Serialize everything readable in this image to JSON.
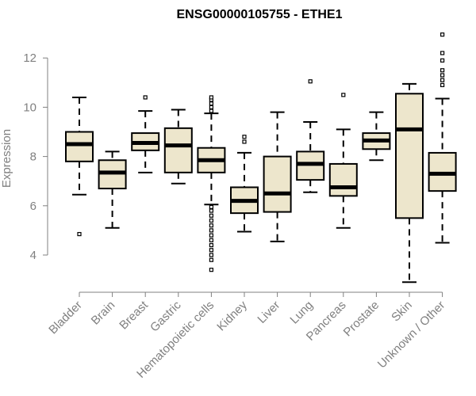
{
  "chart_data": {
    "type": "box",
    "title": "ENSG00000105755 - ETHE1",
    "ylabel": "Expression",
    "xlabel": "",
    "ylim": [
      3.0,
      13.0
    ],
    "yticks": [
      4,
      6,
      8,
      10,
      12
    ],
    "grid": false,
    "legend": "none",
    "box_fill": "#ede6cc",
    "box_stroke": "#000000",
    "categories": [
      "Bladder",
      "Brain",
      "Breast",
      "Gastric",
      "Hematopoietic cells",
      "Kidney",
      "Liver",
      "Lung",
      "Pancreas",
      "Prostate",
      "Skin",
      "Unknown / Other"
    ],
    "boxes": [
      {
        "whisker_low": 6.45,
        "q1": 7.8,
        "median": 8.5,
        "q3": 9.0,
        "whisker_high": 10.4,
        "outliers": [
          4.85
        ]
      },
      {
        "whisker_low": 5.1,
        "q1": 6.7,
        "median": 7.35,
        "q3": 7.85,
        "whisker_high": 8.2,
        "outliers": []
      },
      {
        "whisker_low": 7.35,
        "q1": 8.25,
        "median": 8.55,
        "q3": 8.95,
        "whisker_high": 9.85,
        "outliers": [
          10.4
        ]
      },
      {
        "whisker_low": 6.9,
        "q1": 7.35,
        "median": 8.45,
        "q3": 9.15,
        "whisker_high": 9.9,
        "outliers": []
      },
      {
        "whisker_low": 6.05,
        "q1": 7.35,
        "median": 7.85,
        "q3": 8.35,
        "whisker_high": 9.75,
        "outliers": [
          3.4,
          3.8,
          4.0,
          4.2,
          4.4,
          4.6,
          4.8,
          5.0,
          5.2,
          5.4,
          5.6,
          5.8,
          5.95,
          9.85,
          10.0,
          10.15,
          10.3,
          10.4
        ]
      },
      {
        "whisker_low": 4.95,
        "q1": 5.7,
        "median": 6.2,
        "q3": 6.75,
        "whisker_high": 8.15,
        "outliers": [
          8.6,
          8.8
        ]
      },
      {
        "whisker_low": 4.55,
        "q1": 5.75,
        "median": 6.5,
        "q3": 8.0,
        "whisker_high": 9.8,
        "outliers": []
      },
      {
        "whisker_low": 6.55,
        "q1": 7.05,
        "median": 7.7,
        "q3": 8.2,
        "whisker_high": 9.4,
        "outliers": [
          11.05
        ]
      },
      {
        "whisker_low": 5.1,
        "q1": 6.4,
        "median": 6.75,
        "q3": 7.7,
        "whisker_high": 9.1,
        "outliers": [
          10.5
        ]
      },
      {
        "whisker_low": 7.85,
        "q1": 8.3,
        "median": 8.65,
        "q3": 8.95,
        "whisker_high": 9.8,
        "outliers": []
      },
      {
        "whisker_low": 2.9,
        "q1": 5.5,
        "median": 9.1,
        "q3": 10.55,
        "whisker_high": 10.95,
        "outliers": []
      },
      {
        "whisker_low": 4.5,
        "q1": 6.6,
        "median": 7.3,
        "q3": 8.15,
        "whisker_high": 10.35,
        "outliers": [
          10.9,
          11.1,
          11.3,
          11.5,
          11.9,
          12.2,
          12.95
        ]
      }
    ]
  }
}
